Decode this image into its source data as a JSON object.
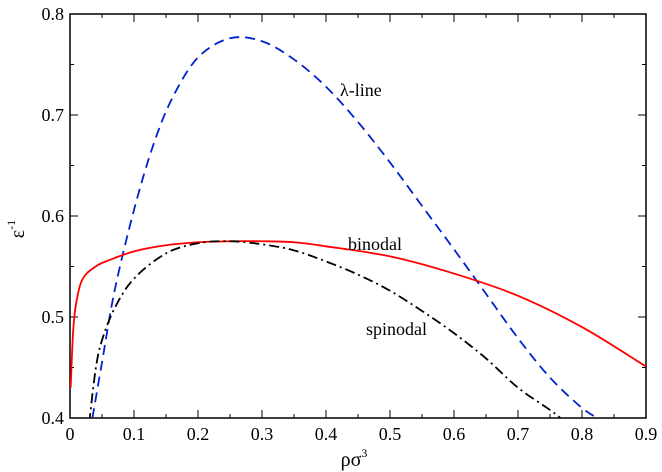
{
  "chart_data": {
    "type": "line",
    "xlabel_base": "ρσ",
    "xlabel_sup": "3",
    "ylabel_base": "ε",
    "ylabel_sup": "-1",
    "xlim": [
      0,
      0.9
    ],
    "ylim": [
      0.4,
      0.8
    ],
    "x_ticks": [
      0,
      0.1,
      0.2,
      0.3,
      0.4,
      0.5,
      0.6,
      0.7,
      0.8,
      0.9
    ],
    "x_tick_labels": [
      "0",
      "0.1",
      "0.2",
      "0.3",
      "0.4",
      "0.5",
      "0.6",
      "0.7",
      "0.8",
      "0.9"
    ],
    "y_ticks": [
      0.4,
      0.5,
      0.6,
      0.7,
      0.8
    ],
    "y_tick_labels": [
      "0.4",
      "0.5",
      "0.6",
      "0.7",
      "0.8"
    ],
    "grid": false,
    "annotations": [
      "λ-line",
      "binodal",
      "spinodal"
    ],
    "series": [
      {
        "name": "λ-line",
        "color": "#0022cc",
        "dash": "dashed",
        "x": [
          0.035,
          0.05,
          0.07,
          0.1,
          0.13,
          0.16,
          0.2,
          0.25,
          0.3,
          0.35,
          0.4,
          0.45,
          0.5,
          0.55,
          0.6,
          0.65,
          0.7,
          0.75,
          0.8,
          0.83
        ],
        "y": [
          0.4,
          0.455,
          0.527,
          0.606,
          0.67,
          0.717,
          0.757,
          0.776,
          0.773,
          0.755,
          0.728,
          0.693,
          0.653,
          0.61,
          0.567,
          0.523,
          0.479,
          0.44,
          0.41,
          0.398
        ]
      },
      {
        "name": "binodal",
        "color": "#ff0000",
        "dash": "solid",
        "x": [
          0.001,
          0.005,
          0.01,
          0.02,
          0.04,
          0.06,
          0.1,
          0.15,
          0.2,
          0.25,
          0.3,
          0.35,
          0.4,
          0.5,
          0.6,
          0.7,
          0.8,
          0.9
        ],
        "y": [
          0.43,
          0.487,
          0.515,
          0.538,
          0.55,
          0.556,
          0.565,
          0.571,
          0.574,
          0.575,
          0.575,
          0.574,
          0.57,
          0.56,
          0.543,
          0.521,
          0.49,
          0.451
        ]
      },
      {
        "name": "spinodal",
        "color": "#000000",
        "dash": "dashdot",
        "x": [
          0.03,
          0.04,
          0.05,
          0.07,
          0.1,
          0.15,
          0.2,
          0.25,
          0.3,
          0.35,
          0.4,
          0.45,
          0.5,
          0.55,
          0.6,
          0.65,
          0.7,
          0.75,
          0.77
        ],
        "y": [
          0.395,
          0.448,
          0.477,
          0.509,
          0.538,
          0.563,
          0.573,
          0.575,
          0.572,
          0.566,
          0.555,
          0.542,
          0.526,
          0.506,
          0.484,
          0.459,
          0.43,
          0.408,
          0.398
        ]
      }
    ]
  }
}
